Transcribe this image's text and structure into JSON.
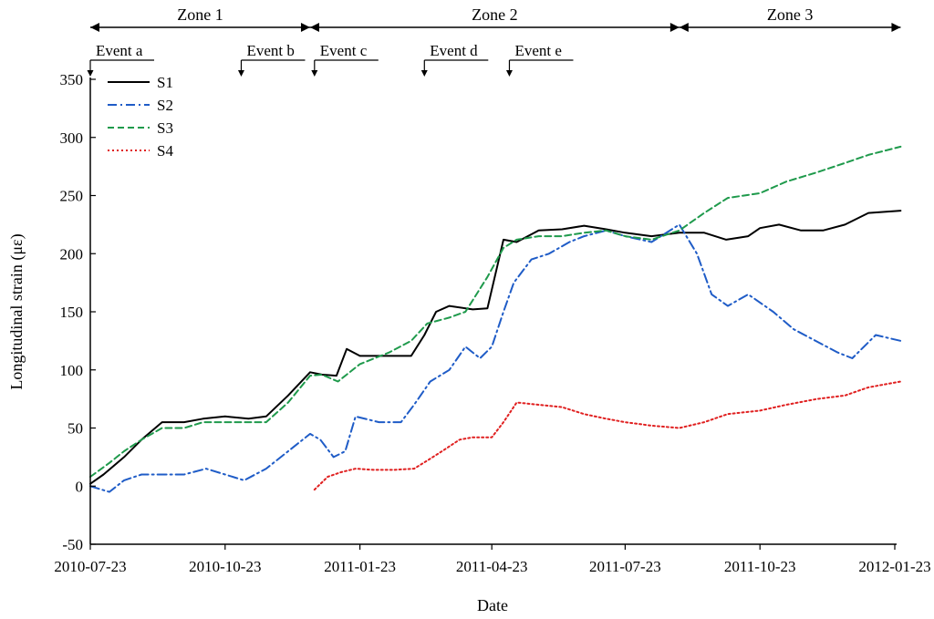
{
  "chart_data": {
    "type": "line",
    "xlabel": "Date",
    "ylabel": "Longitudinal strain (με)",
    "xlim": [
      "2010-07-23",
      "2012-01-23"
    ],
    "ylim": [
      -50,
      350
    ],
    "x_ticks": [
      "2010-07-23",
      "2010-10-23",
      "2011-01-23",
      "2011-04-23",
      "2011-07-23",
      "2011-10-23",
      "2012-01-23"
    ],
    "y_ticks": [
      -50,
      0,
      50,
      100,
      150,
      200,
      250,
      300,
      350
    ],
    "legend_position": "top-left",
    "zones": [
      {
        "label": "Zone 1",
        "start": "2010-07-23",
        "end": "2010-12-20"
      },
      {
        "label": "Zone 2",
        "start": "2010-12-20",
        "end": "2011-08-29"
      },
      {
        "label": "Zone 3",
        "start": "2011-08-29",
        "end": "2012-01-27"
      }
    ],
    "events": [
      {
        "label": "Event a",
        "date": "2010-07-23"
      },
      {
        "label": "Event b",
        "date": "2010-11-03"
      },
      {
        "label": "Event c",
        "date": "2010-12-23"
      },
      {
        "label": "Event d",
        "date": "2011-03-08"
      },
      {
        "label": "Event e",
        "date": "2011-05-05"
      }
    ],
    "series": [
      {
        "name": "S1",
        "color": "#000000",
        "style": "solid",
        "x": [
          "2010-07-23",
          "2010-08-01",
          "2010-08-15",
          "2010-08-27",
          "2010-09-10",
          "2010-09-25",
          "2010-10-08",
          "2010-10-23",
          "2010-11-08",
          "2010-11-20",
          "2010-12-05",
          "2010-12-20",
          "2010-12-28",
          "2011-01-07",
          "2011-01-14",
          "2011-01-23",
          "2011-02-05",
          "2011-02-12",
          "2011-02-27",
          "2011-03-08",
          "2011-03-16",
          "2011-03-25",
          "2011-04-10",
          "2011-04-20",
          "2011-05-01",
          "2011-05-10",
          "2011-05-25",
          "2011-06-10",
          "2011-06-25",
          "2011-07-10",
          "2011-07-23",
          "2011-08-10",
          "2011-08-29",
          "2011-09-15",
          "2011-09-30",
          "2011-10-15",
          "2011-10-23",
          "2011-11-05",
          "2011-11-20",
          "2011-12-05",
          "2011-12-20",
          "2012-01-05",
          "2012-01-27"
        ],
        "y": [
          2,
          10,
          25,
          40,
          55,
          55,
          58,
          60,
          58,
          60,
          78,
          98,
          96,
          95,
          118,
          112,
          112,
          112,
          112,
          130,
          150,
          155,
          152,
          153,
          212,
          210,
          220,
          221,
          224,
          221,
          218,
          215,
          218,
          218,
          212,
          215,
          222,
          225,
          220,
          220,
          225,
          235,
          237
        ]
      },
      {
        "name": "S2",
        "color": "#1f5cc7",
        "style": "dashdot",
        "x": [
          "2010-07-23",
          "2010-08-05",
          "2010-08-15",
          "2010-08-27",
          "2010-09-10",
          "2010-09-25",
          "2010-10-10",
          "2010-10-23",
          "2010-11-05",
          "2010-11-20",
          "2010-12-05",
          "2010-12-20",
          "2010-12-27",
          "2011-01-05",
          "2011-01-13",
          "2011-01-20",
          "2011-02-05",
          "2011-02-20",
          "2011-03-01",
          "2011-03-12",
          "2011-03-25",
          "2011-04-05",
          "2011-04-15",
          "2011-04-23",
          "2011-05-01",
          "2011-05-08",
          "2011-05-20",
          "2011-06-01",
          "2011-06-15",
          "2011-06-25",
          "2011-07-10",
          "2011-07-23",
          "2011-08-10",
          "2011-08-29",
          "2011-09-10",
          "2011-09-20",
          "2011-10-01",
          "2011-10-15",
          "2011-11-01",
          "2011-11-15",
          "2011-11-30",
          "2011-12-15",
          "2011-12-25",
          "2012-01-10",
          "2012-01-27"
        ],
        "y": [
          0,
          -5,
          5,
          10,
          10,
          10,
          15,
          10,
          5,
          15,
          30,
          45,
          40,
          25,
          30,
          60,
          55,
          55,
          70,
          90,
          100,
          120,
          110,
          120,
          150,
          175,
          195,
          200,
          210,
          215,
          220,
          215,
          210,
          225,
          200,
          165,
          155,
          165,
          150,
          135,
          125,
          115,
          110,
          130,
          125
        ]
      },
      {
        "name": "S3",
        "color": "#1f9a4c",
        "style": "dashed",
        "x": [
          "2010-07-23",
          "2010-08-05",
          "2010-08-15",
          "2010-08-27",
          "2010-09-10",
          "2010-09-25",
          "2010-10-08",
          "2010-10-23",
          "2010-11-08",
          "2010-11-20",
          "2010-12-05",
          "2010-12-20",
          "2010-12-28",
          "2011-01-08",
          "2011-01-23",
          "2011-02-12",
          "2011-02-27",
          "2011-03-10",
          "2011-03-25",
          "2011-04-05",
          "2011-04-20",
          "2011-05-01",
          "2011-05-10",
          "2011-05-25",
          "2011-06-10",
          "2011-06-25",
          "2011-07-10",
          "2011-07-23",
          "2011-08-10",
          "2011-08-29",
          "2011-09-15",
          "2011-10-01",
          "2011-10-23",
          "2011-11-10",
          "2011-12-01",
          "2011-12-20",
          "2012-01-05",
          "2012-01-27"
        ],
        "y": [
          8,
          20,
          30,
          40,
          50,
          50,
          55,
          55,
          55,
          55,
          72,
          95,
          96,
          90,
          105,
          115,
          125,
          140,
          145,
          150,
          180,
          205,
          212,
          215,
          215,
          218,
          220,
          215,
          212,
          220,
          235,
          248,
          252,
          262,
          270,
          278,
          285,
          292
        ]
      },
      {
        "name": "S4",
        "color": "#e02020",
        "style": "dotted",
        "x": [
          "2010-12-23",
          "2011-01-01",
          "2011-01-10",
          "2011-01-20",
          "2011-02-01",
          "2011-02-15",
          "2011-03-01",
          "2011-03-10",
          "2011-03-20",
          "2011-04-01",
          "2011-04-10",
          "2011-04-23",
          "2011-05-01",
          "2011-05-10",
          "2011-05-25",
          "2011-06-10",
          "2011-06-25",
          "2011-07-10",
          "2011-07-23",
          "2011-08-10",
          "2011-08-29",
          "2011-09-15",
          "2011-10-01",
          "2011-10-23",
          "2011-11-10",
          "2011-12-01",
          "2011-12-20",
          "2012-01-05",
          "2012-01-27"
        ],
        "y": [
          -3,
          8,
          12,
          15,
          14,
          14,
          15,
          22,
          30,
          40,
          42,
          42,
          55,
          72,
          70,
          68,
          62,
          58,
          55,
          52,
          50,
          55,
          62,
          65,
          70,
          75,
          78,
          85,
          90
        ]
      }
    ]
  }
}
